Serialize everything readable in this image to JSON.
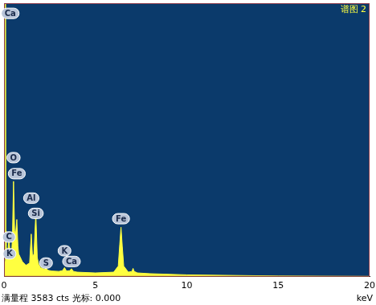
{
  "chart_data": {
    "type": "area",
    "title": "谱图 2",
    "x_label": "keV",
    "footer": "满量程 3583 cts 光标: 0.000",
    "x": [
      0,
      0.05,
      0.08,
      0.1,
      0.12,
      0.2,
      0.27,
      0.32,
      0.4,
      0.46,
      0.52,
      0.58,
      0.63,
      0.7,
      0.76,
      0.8,
      0.9,
      1.0,
      1.2,
      1.4,
      1.49,
      1.56,
      1.64,
      1.74,
      1.82,
      1.9,
      2.0,
      2.2,
      2.3,
      2.4,
      2.6,
      3.0,
      3.2,
      3.31,
      3.42,
      3.6,
      3.69,
      3.8,
      4.0,
      5.0,
      6.0,
      6.25,
      6.33,
      6.4,
      6.47,
      6.55,
      6.8,
      7.0,
      7.06,
      7.12,
      7.3,
      8.0,
      10.0,
      15.0,
      20.0
    ],
    "values": [
      0,
      200,
      3583,
      600,
      400,
      300,
      500,
      350,
      250,
      500,
      1250,
      600,
      550,
      750,
      400,
      300,
      250,
      200,
      150,
      180,
      560,
      260,
      300,
      830,
      250,
      160,
      120,
      100,
      115,
      85,
      75,
      70,
      80,
      120,
      75,
      80,
      105,
      70,
      60,
      50,
      60,
      140,
      420,
      650,
      400,
      140,
      60,
      70,
      110,
      70,
      50,
      40,
      25,
      10,
      5
    ],
    "color": "#ffff40",
    "xlim": [
      0,
      20
    ],
    "xticks": [
      0,
      5,
      10,
      15,
      20
    ],
    "ylim": [
      0,
      3583
    ],
    "yticks": [],
    "tick_labels": "x",
    "grid": false,
    "annotations": [
      {
        "text": "Ca",
        "x": 0.34,
        "y": 3450
      },
      {
        "text": "O",
        "x": 0.52,
        "y": 1560
      },
      {
        "text": "Fe",
        "x": 0.7,
        "y": 1350
      },
      {
        "text": "Al",
        "x": 1.49,
        "y": 1030
      },
      {
        "text": "Si",
        "x": 1.74,
        "y": 830
      },
      {
        "text": "C",
        "x": 0.27,
        "y": 520
      },
      {
        "text": "K",
        "x": 0.3,
        "y": 300
      },
      {
        "text": "S",
        "x": 2.3,
        "y": 180
      },
      {
        "text": "K",
        "x": 3.31,
        "y": 340
      },
      {
        "text": "Ca",
        "x": 3.69,
        "y": 200
      },
      {
        "text": "Fe",
        "x": 6.4,
        "y": 760
      }
    ]
  }
}
